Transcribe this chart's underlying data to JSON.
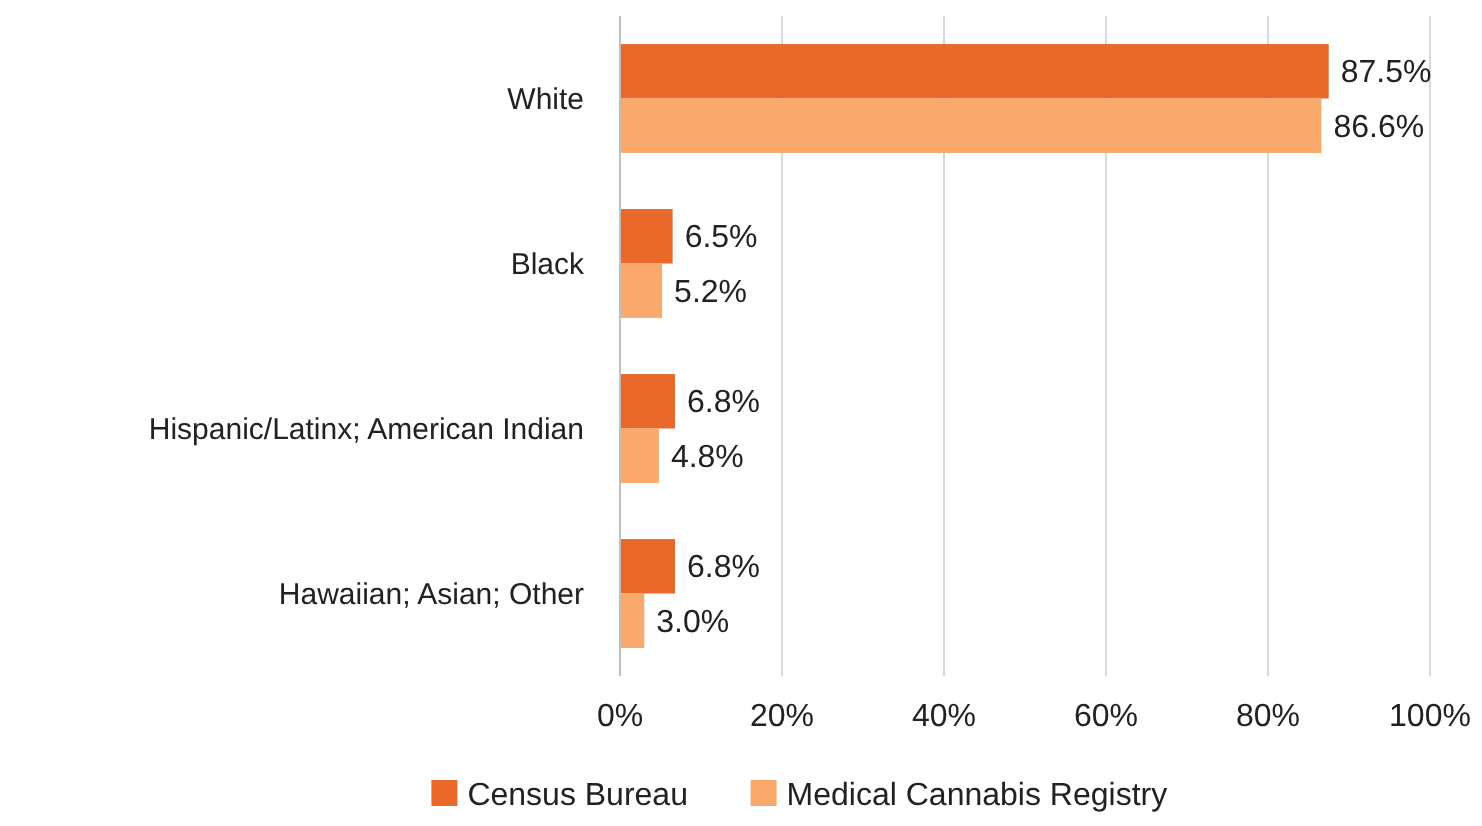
{
  "chart_data": {
    "type": "bar",
    "orientation": "horizontal",
    "categories": [
      "White",
      "Black",
      "Hispanic/Latinx; American Indian",
      "Hawaiian; Asian; Other"
    ],
    "series": [
      {
        "name": "Census Bureau",
        "color": "#e8692a",
        "values": [
          87.5,
          6.5,
          6.8,
          6.8
        ]
      },
      {
        "name": "Medical Cannabis Registry",
        "color": "#f9a96b",
        "values": [
          86.6,
          5.2,
          4.8,
          3.0
        ]
      }
    ],
    "xlim": [
      0,
      100
    ],
    "xticks": [
      {
        "value": 0,
        "label": "0%"
      },
      {
        "value": 20,
        "label": "20%"
      },
      {
        "value": 40,
        "label": "40%"
      },
      {
        "value": 60,
        "label": "60%"
      },
      {
        "value": 80,
        "label": "80%"
      },
      {
        "value": 100,
        "label": "100%"
      }
    ],
    "value_labels": [
      [
        "87.5%",
        "6.5%",
        "6.8%",
        "6.8%"
      ],
      [
        "86.6%",
        "5.2%",
        "4.8%",
        "3.0%"
      ]
    ],
    "grid": "x",
    "legend": "bottom"
  }
}
